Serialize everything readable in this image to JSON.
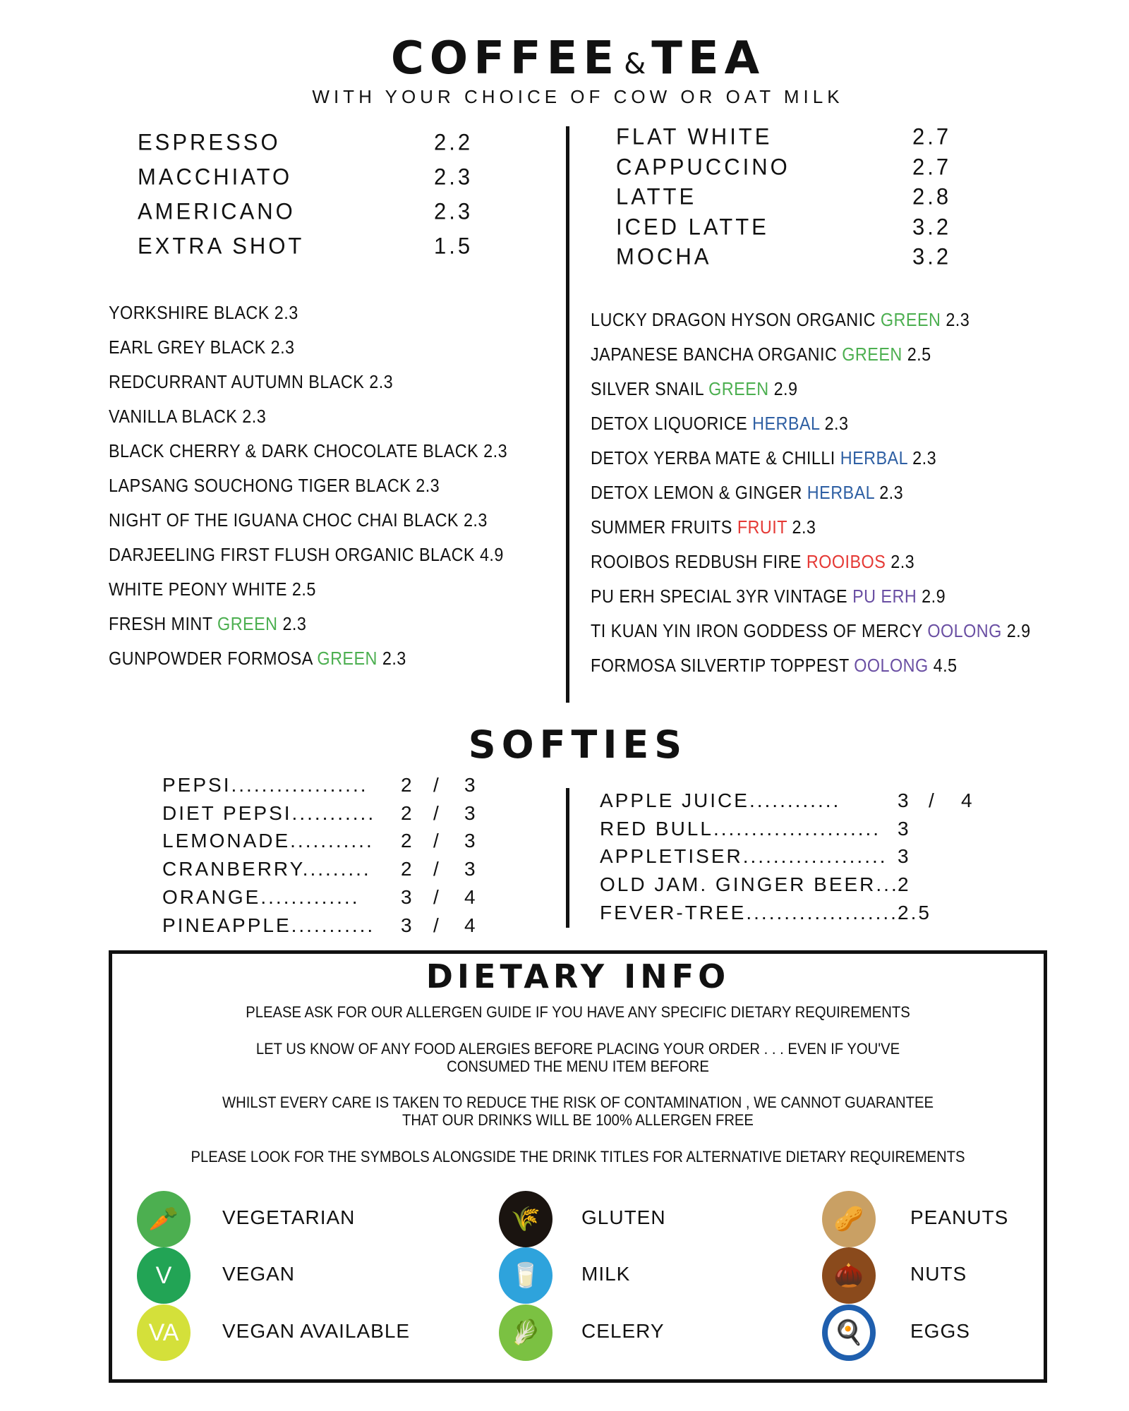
{
  "header": {
    "title_left": "COFFEE",
    "title_amp": "&",
    "title_right": "TEA",
    "subtitle": "WITH YOUR CHOICE OF COW OR OAT MILK"
  },
  "coffee_left": [
    {
      "name": "ESPRESSO",
      "price": "2.2"
    },
    {
      "name": "MACCHIATO",
      "price": "2.3"
    },
    {
      "name": "AMERICANO",
      "price": "2.3"
    },
    {
      "name": "EXTRA SHOT",
      "price": "1.5"
    }
  ],
  "coffee_right": [
    {
      "name": "FLAT WHITE",
      "price": "2.7"
    },
    {
      "name": "CAPPUCCINO",
      "price": "2.7"
    },
    {
      "name": "LATTE",
      "price": "2.8"
    },
    {
      "name": "ICED LATTE",
      "price": "3.2"
    },
    {
      "name": "MOCHA",
      "price": "3.2"
    }
  ],
  "tea_colors": {
    "BLACK": "#111111",
    "WHITE": "#111111",
    "GREEN": "#4caf50",
    "HERBAL": "#2e5fa3",
    "FRUIT": "#e53935",
    "ROOIBOS": "#e53935",
    "PU ERH": "#6a4fa3",
    "OOLONG": "#6a4fa3"
  },
  "tea_left": [
    {
      "name": "YORKSHIRE",
      "type": "BLACK",
      "price": "2.3"
    },
    {
      "name": "EARL GREY",
      "type": "BLACK",
      "price": "2.3"
    },
    {
      "name": "REDCURRANT AUTUMN",
      "type": "BLACK",
      "price": "2.3"
    },
    {
      "name": "VANILLA",
      "type": "BLACK",
      "price": "2.3"
    },
    {
      "name": "BLACK CHERRY & DARK CHOCOLATE",
      "type": "BLACK",
      "price": "2.3"
    },
    {
      "name": "LAPSANG SOUCHONG TIGER",
      "type": "BLACK",
      "price": "2.3"
    },
    {
      "name": "NIGHT OF THE IGUANA CHOC CHAI",
      "type": "BLACK",
      "price": "2.3"
    },
    {
      "name": "DARJEELING FIRST FLUSH ORGANIC",
      "type": "BLACK",
      "price": "4.9"
    },
    {
      "name": "WHITE PEONY",
      "type": "WHITE",
      "price": "2.5"
    },
    {
      "name": "FRESH MINT",
      "type": "GREEN",
      "price": "2.3"
    },
    {
      "name": "GUNPOWDER FORMOSA",
      "type": "GREEN",
      "price": "2.3"
    }
  ],
  "tea_right": [
    {
      "name": "LUCKY DRAGON HYSON ORGANIC",
      "type": "GREEN",
      "price": "2.3"
    },
    {
      "name": "JAPANESE BANCHA ORGANIC",
      "type": "GREEN",
      "price": "2.5"
    },
    {
      "name": "SILVER SNAIL",
      "type": "GREEN",
      "price": "2.9"
    },
    {
      "name": "DETOX LIQUORICE",
      "type": "HERBAL",
      "price": "2.3"
    },
    {
      "name": "DETOX YERBA MATE & CHILLI",
      "type": "HERBAL",
      "price": "2.3"
    },
    {
      "name": "DETOX LEMON & GINGER",
      "type": "HERBAL",
      "price": "2.3"
    },
    {
      "name": "SUMMER FRUITS",
      "type": "FRUIT",
      "price": "2.3"
    },
    {
      "name": "ROOIBOS REDBUSH FIRE",
      "type": "ROOIBOS",
      "price": "2.3"
    },
    {
      "name": "PU ERH SPECIAL 3YR VINTAGE",
      "type": "PU ERH",
      "price": "2.9"
    },
    {
      "name": "TI KUAN YIN IRON GODDESS OF MERCY",
      "type": "OOLONG",
      "price": "2.9"
    },
    {
      "name": "FORMOSA SILVERTIP TOPPEST",
      "type": "OOLONG",
      "price": "4.5"
    }
  ],
  "softies": {
    "title": "SOFTIES",
    "left": [
      {
        "name": "PEPSI..................",
        "small": "2",
        "large": "3"
      },
      {
        "name": "DIET PEPSI...........",
        "small": "2",
        "large": "3"
      },
      {
        "name": "LEMONADE...........",
        "small": "2",
        "large": "3"
      },
      {
        "name": "CRANBERRY.........",
        "small": "2",
        "large": "3"
      },
      {
        "name": "ORANGE.............",
        "small": "3",
        "large": "4"
      },
      {
        "name": "PINEAPPLE...........",
        "small": "3",
        "large": "4"
      }
    ],
    "right": [
      {
        "name": "APPLE JUICE............",
        "small": "3",
        "large": "4"
      },
      {
        "name": "RED BULL......................",
        "small": "3",
        "large": ""
      },
      {
        "name": "APPLETISER...................",
        "small": "3",
        "large": ""
      },
      {
        "name": "OLD JAM. GINGER BEER...",
        "small": "2",
        "large": ""
      },
      {
        "name": "FEVER-TREE....................",
        "small": "2.5",
        "large": ""
      }
    ],
    "separator": "/"
  },
  "dietary": {
    "title": "DIETARY INFO",
    "lines": [
      "PLEASE ASK FOR OUR ALLERGEN GUIDE IF YOU HAVE ANY SPECIFIC DIETARY REQUIREMENTS",
      "LET US KNOW OF ANY FOOD ALERGIES BEFORE PLACING YOUR ORDER . . . EVEN IF YOU'VE",
      "CONSUMED THE MENU ITEM BEFORE",
      "WHILST EVERY CARE IS TAKEN TO REDUCE THE RISK OF CONTAMINATION , WE CANNOT GUARANTEE",
      "THAT OUR DRINKS WILL BE 100% ALLERGEN FREE",
      "PLEASE LOOK FOR THE SYMBOLS ALONGSIDE THE DRINK TITLES FOR ALTERNATIVE DIETARY REQUIREMENTS"
    ],
    "symbols": [
      {
        "label": "VEGETARIAN",
        "icon": "carrot-icon",
        "color": "#4caf50",
        "glyph": "🥕"
      },
      {
        "label": "VEGAN",
        "icon": "vegan-v-icon",
        "color": "#22a455",
        "glyph": "V"
      },
      {
        "label": "VEGAN AVAILABLE",
        "icon": "vegan-available-icon",
        "color": "#d4e03a",
        "glyph": "VA"
      },
      {
        "label": "GLUTEN",
        "icon": "wheat-icon",
        "color": "#1a1410",
        "glyph": "🌾"
      },
      {
        "label": "MILK",
        "icon": "milk-glass-icon",
        "color": "#2ea3dc",
        "glyph": "🥛"
      },
      {
        "label": "CELERY",
        "icon": "celery-icon",
        "color": "#7bc142",
        "glyph": "🥬"
      },
      {
        "label": "PEANUTS",
        "icon": "peanut-icon",
        "color": "#c9a064",
        "glyph": "🥜"
      },
      {
        "label": "NUTS",
        "icon": "nut-icon",
        "color": "#8a4a1c",
        "glyph": "🌰"
      },
      {
        "label": "EGGS",
        "icon": "egg-icon",
        "color": "#1f5fae",
        "glyph": "🍳"
      }
    ]
  }
}
